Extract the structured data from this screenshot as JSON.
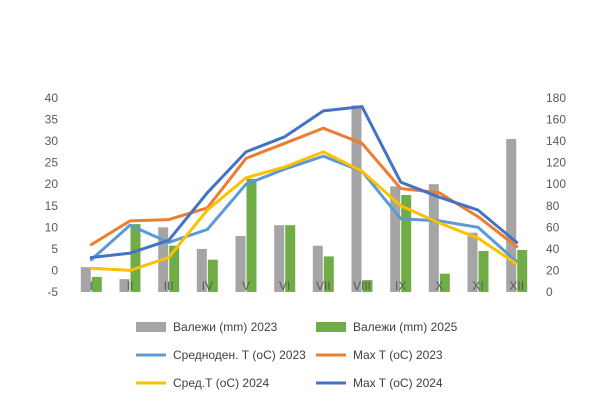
{
  "chart_data": {
    "type": "bar",
    "categories": [
      "I",
      "II",
      "III",
      "IV",
      "V",
      "VI",
      "VII",
      "VIII",
      "IX",
      "X",
      "XI",
      "XII"
    ],
    "y_left_ticks": [
      "-5",
      "0",
      "5",
      "10",
      "15",
      "20",
      "25",
      "30",
      "35",
      "40"
    ],
    "y_right_ticks": [
      "0",
      "20",
      "40",
      "60",
      "80",
      "100",
      "120",
      "140",
      "160",
      "180"
    ],
    "ylim_left": [
      -5,
      40
    ],
    "ylim_right": [
      0,
      180
    ],
    "grid": false,
    "legend_position": "bottom",
    "bar_series": [
      {
        "name": "Валежи (mm) 2023",
        "axis": "right",
        "color": "#a5a5a5",
        "values": [
          23,
          12,
          60,
          40,
          52,
          62,
          43,
          173,
          98,
          100,
          55,
          142
        ]
      },
      {
        "name": "Валежи (mm) 2025",
        "axis": "right",
        "color": "#70ad47",
        "values": [
          14,
          63,
          43,
          30,
          105,
          62,
          33,
          11,
          90,
          17,
          38,
          39
        ]
      }
    ],
    "line_series": [
      {
        "name": "Средноден. Т (оС) 2023",
        "axis": "left",
        "color": "#5b9bd5",
        "values": [
          2.5,
          10.5,
          6.5,
          9.5,
          20,
          23.5,
          26.5,
          23,
          12,
          11.5,
          10,
          2
        ]
      },
      {
        "name": "Max T (оС) 2023",
        "axis": "left",
        "color": "#ed7d31",
        "values": [
          6,
          11.5,
          11.8,
          14.5,
          26,
          29.5,
          33,
          29.5,
          19,
          18,
          12.5,
          5.5
        ]
      },
      {
        "name": "Сред.Т  (оС) 2024",
        "axis": "left",
        "color": "#ffc000",
        "values": [
          0.5,
          0,
          3,
          14,
          21.5,
          24,
          27.5,
          23,
          15,
          11,
          7.5,
          1.5
        ]
      },
      {
        "name": "Max T (оС) 2024",
        "axis": "left",
        "color": "#4472c4",
        "values": [
          3,
          4,
          7,
          18,
          27.5,
          31,
          37,
          38,
          20.5,
          17,
          14,
          6.5
        ]
      }
    ],
    "legend_order": [
      "Валежи (mm) 2023",
      "Валежи (mm) 2025",
      "Средноден. Т (оС) 2023",
      "Max T (оС) 2023",
      "Сред.Т  (оС) 2024",
      "Max T (оС) 2024"
    ]
  }
}
